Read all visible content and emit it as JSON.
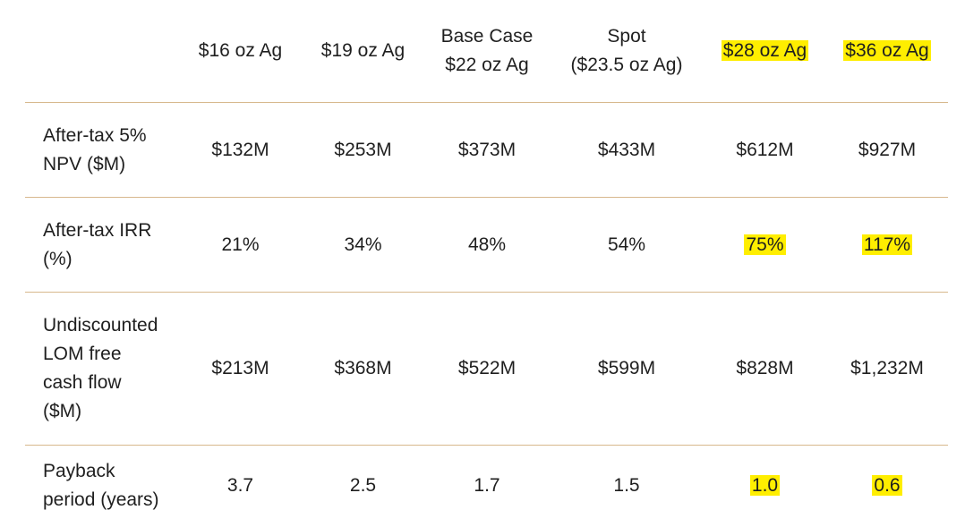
{
  "table": {
    "columns": [
      {
        "line1": "$16 oz Ag",
        "line2": "",
        "bold": false,
        "highlight": false
      },
      {
        "line1": "$19 oz Ag",
        "line2": "",
        "bold": false,
        "highlight": false
      },
      {
        "line1": "Base Case",
        "line2": "$22 oz Ag",
        "bold": true,
        "highlight": false
      },
      {
        "line1": "Spot",
        "line2": "($23.5 oz Ag)",
        "bold": false,
        "highlight": false
      },
      {
        "line1": "$28 oz Ag",
        "line2": "",
        "bold": false,
        "highlight": true
      },
      {
        "line1": "$36 oz Ag",
        "line2": "",
        "bold": false,
        "highlight": true
      }
    ],
    "rows": [
      {
        "label": [
          "After-tax 5%",
          "NPV ($M)"
        ],
        "values": [
          "$132M",
          "$253M",
          "$373M",
          "$433M",
          "$612M",
          "$927M"
        ]
      },
      {
        "label": [
          "After-tax IRR",
          "(%)"
        ],
        "values": [
          "21%",
          "34%",
          "48%",
          "54%",
          "75%",
          "117%"
        ]
      },
      {
        "label": [
          "Undiscounted",
          "LOM free",
          "cash flow",
          "($M)"
        ],
        "values": [
          "$213M",
          "$368M",
          "$522M",
          "$599M",
          "$828M",
          "$1,232M"
        ]
      },
      {
        "label": [
          "Payback",
          "period (years)"
        ],
        "values": [
          "3.7",
          "2.5",
          "1.7",
          "1.5",
          "1.0",
          "0.6"
        ]
      }
    ]
  },
  "highlight_color": "#ffee00",
  "divider_color": "#d7b88d"
}
